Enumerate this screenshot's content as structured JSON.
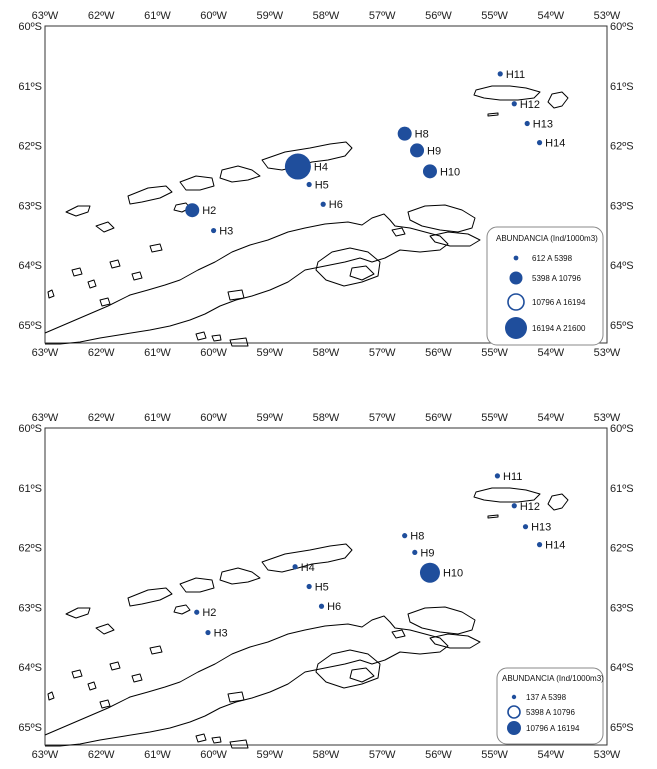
{
  "colors": {
    "marker": "#1f4e9c",
    "coast": "#000000",
    "frame": "#333333"
  },
  "axes": {
    "lon_labels": [
      "63ºW",
      "62ºW",
      "61ºW",
      "60ºW",
      "59ºW",
      "58ºW",
      "57ºW",
      "56ºW",
      "55ºW",
      "54ºW",
      "53ºW"
    ],
    "lat_labels": [
      "60ºS",
      "61ºS",
      "62ºS",
      "63ºS",
      "64ºS",
      "65ºS"
    ],
    "lon_range": [
      -63,
      -53
    ],
    "lat_range": [
      -60,
      -65.3
    ]
  },
  "maps": [
    {
      "legend": {
        "title": "ABUNDANCIA (Ind/1000m3)",
        "items": [
          {
            "label": "612  A  5398",
            "style": "filled",
            "size": "tiny"
          },
          {
            "label": "5398  A  10796",
            "style": "filled",
            "size": "small"
          },
          {
            "label": "10796  A  16194",
            "style": "ring",
            "size": "medium"
          },
          {
            "label": "16194  A  21600",
            "style": "filled",
            "size": "large"
          }
        ]
      },
      "stations": [
        {
          "name": "H2",
          "lon": -60.38,
          "lat": -63.08,
          "class": 1
        },
        {
          "name": "H3",
          "lon": -60.0,
          "lat": -63.42,
          "class": 0
        },
        {
          "name": "H4",
          "lon": -58.5,
          "lat": -62.35,
          "class": 3
        },
        {
          "name": "H5",
          "lon": -58.3,
          "lat": -62.65,
          "class": 0
        },
        {
          "name": "H6",
          "lon": -58.05,
          "lat": -62.98,
          "class": 0
        },
        {
          "name": "H8",
          "lon": -56.6,
          "lat": -61.8,
          "class": 1
        },
        {
          "name": "H9",
          "lon": -56.38,
          "lat": -62.08,
          "class": 1
        },
        {
          "name": "H10",
          "lon": -56.15,
          "lat": -62.43,
          "class": 1
        },
        {
          "name": "H11",
          "lon": -54.9,
          "lat": -60.8,
          "class": 0
        },
        {
          "name": "H12",
          "lon": -54.65,
          "lat": -61.3,
          "class": 0
        },
        {
          "name": "H13",
          "lon": -54.42,
          "lat": -61.63,
          "class": 0
        },
        {
          "name": "H14",
          "lon": -54.2,
          "lat": -61.95,
          "class": 0
        }
      ]
    },
    {
      "legend": {
        "title": "ABUNDANCIA (Ind/1000m3)",
        "items": [
          {
            "label": "137  A  5398",
            "style": "filled",
            "size": "tiny"
          },
          {
            "label": "5398  A  10796",
            "style": "ring",
            "size": "small"
          },
          {
            "label": "10796  A  16194",
            "style": "filled",
            "size": "medium"
          }
        ]
      },
      "stations": [
        {
          "name": "H2",
          "lon": -60.3,
          "lat": -63.08,
          "class": 0
        },
        {
          "name": "H3",
          "lon": -60.1,
          "lat": -63.42,
          "class": 0
        },
        {
          "name": "H4",
          "lon": -58.55,
          "lat": -62.32,
          "class": 0
        },
        {
          "name": "H5",
          "lon": -58.3,
          "lat": -62.65,
          "class": 0
        },
        {
          "name": "H6",
          "lon": -58.08,
          "lat": -62.98,
          "class": 0
        },
        {
          "name": "H8",
          "lon": -56.6,
          "lat": -61.8,
          "class": 0
        },
        {
          "name": "H9",
          "lon": -56.42,
          "lat": -62.08,
          "class": 0
        },
        {
          "name": "H10",
          "lon": -56.15,
          "lat": -62.42,
          "class": 2
        },
        {
          "name": "H11",
          "lon": -54.95,
          "lat": -60.8,
          "class": 0
        },
        {
          "name": "H12",
          "lon": -54.65,
          "lat": -61.3,
          "class": 0
        },
        {
          "name": "H13",
          "lon": -54.45,
          "lat": -61.65,
          "class": 0
        },
        {
          "name": "H14",
          "lon": -54.2,
          "lat": -61.95,
          "class": 0
        }
      ]
    }
  ]
}
